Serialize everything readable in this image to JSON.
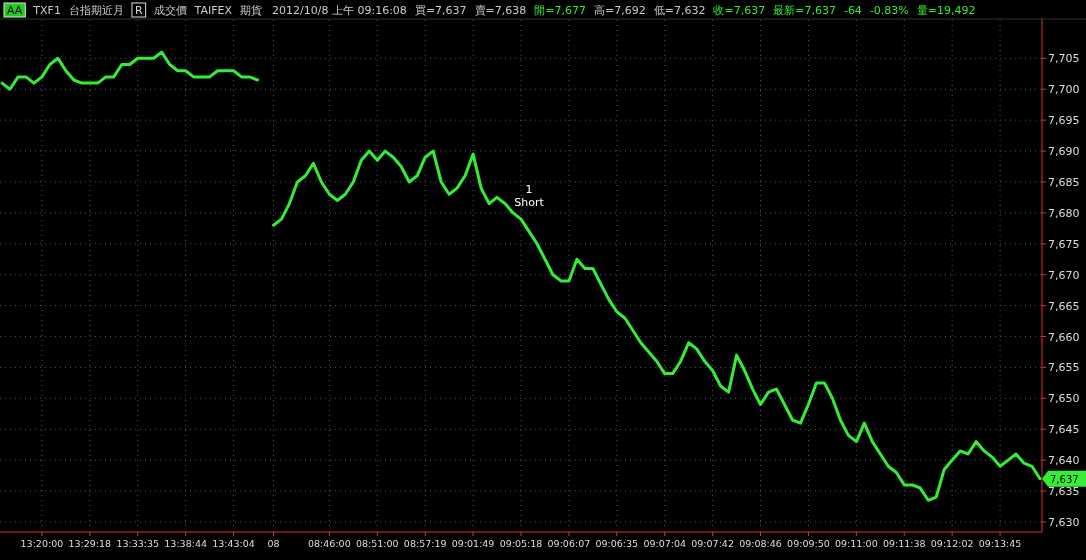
{
  "chart_data": {
    "type": "line",
    "annotations": [
      "AA",
      "TXF1",
      "台指期近月",
      "R",
      "成交價",
      "TAIFEX",
      "期貨",
      "2012/10/8 上午 09:16:08",
      "買=7,637",
      "賣=7,638",
      "開=7,677",
      "高=7,692",
      "低=7,632",
      "收=7,637",
      "最新=7,637",
      "-64",
      "-0.83%",
      "量=19,492",
      {
        "text": "1 Short",
        "x": "09:05:18",
        "y": 7679
      },
      {
        "text": "7,637",
        "y": 7637
      }
    ],
    "categories": [
      null,
      null,
      null,
      null,
      null,
      "13:20:00",
      null,
      null,
      null,
      null,
      null,
      "13:29:18",
      null,
      null,
      null,
      null,
      null,
      "13:33:35",
      null,
      null,
      null,
      null,
      null,
      "13:38:44",
      null,
      null,
      null,
      null,
      null,
      "13:43:04",
      null,
      null,
      null,
      null,
      "08",
      null,
      null,
      null,
      null,
      null,
      null,
      "08:46:00",
      null,
      null,
      null,
      null,
      null,
      "08:51:00",
      null,
      null,
      null,
      null,
      null,
      "08:57:19",
      null,
      null,
      null,
      null,
      null,
      "09:01:49",
      null,
      null,
      null,
      null,
      null,
      "09:05:18",
      null,
      null,
      null,
      null,
      null,
      "09:06:07",
      null,
      null,
      null,
      null,
      null,
      "09:06:35",
      null,
      null,
      null,
      null,
      null,
      "09:07:04",
      null,
      null,
      null,
      null,
      null,
      "09:07:42",
      null,
      null,
      null,
      null,
      null,
      "09:08:46",
      null,
      null,
      null,
      null,
      null,
      "09:09:50",
      null,
      null,
      null,
      null,
      null,
      "09:11:00",
      null,
      null,
      null,
      null,
      null,
      "09:11:38",
      null,
      null,
      null,
      null,
      null,
      "09:12:02",
      null,
      null,
      null,
      null,
      null,
      "09:13:45",
      null,
      null,
      null,
      null,
      null
    ],
    "series": [
      {
        "color": "#33ee33",
        "values": [
          7701,
          7700,
          7702,
          7702,
          7701,
          7702,
          7704,
          7705,
          7703,
          7701.5,
          7701,
          7701,
          7701,
          7702,
          7702,
          7704,
          7704,
          7705,
          7705,
          7705,
          7706,
          7704,
          7703,
          7703,
          7702,
          7702,
          7702,
          7703,
          7703,
          7703,
          7702,
          7702,
          7701.5,
          null,
          7678,
          7679,
          7681.5,
          7685,
          7686,
          7688,
          7685,
          7683,
          7682,
          7683,
          7685,
          7688.5,
          7690,
          7688.5,
          7690,
          7689,
          7687.5,
          7685,
          7686,
          7689,
          7690,
          7685,
          7683,
          7684,
          7686,
          7689.5,
          7684,
          7681.5,
          7682.5,
          7681.5,
          7680,
          7679,
          7677,
          7675,
          7672.5,
          7670,
          7669,
          7669,
          7672.5,
          7671,
          7671,
          7668.5,
          7666,
          7664,
          7663,
          7661,
          7659,
          7657.5,
          7656,
          7654,
          7654,
          7656,
          7659,
          7658,
          7656,
          7654.5,
          7652,
          7651,
          7657,
          7654.5,
          7651.5,
          7649,
          7651,
          7651.5,
          7649,
          7646.5,
          7646,
          7649,
          7652.5,
          7652.5,
          7650,
          7646.5,
          7644,
          7643,
          7646,
          7643,
          7641,
          7639,
          7638,
          7636,
          7636,
          7635.5,
          7633.5,
          7634,
          7638.5,
          7640,
          7641.5,
          7641,
          7643,
          7641.5,
          7640.5,
          7639,
          7640,
          7641,
          7639.5,
          7639,
          7637
        ]
      }
    ],
    "ylim": [
      7628.7,
      7711.2
    ],
    "yticks": [
      {
        "value": 7630,
        "label": "7,630"
      },
      {
        "value": 7635,
        "label": "7,635"
      },
      {
        "value": 7640,
        "label": "7,640"
      },
      {
        "value": 7645,
        "label": "7,645"
      },
      {
        "value": 7650,
        "label": "7,650"
      },
      {
        "value": 7655,
        "label": "7,655"
      },
      {
        "value": 7660,
        "label": "7,660"
      },
      {
        "value": 7665,
        "label": "7,665"
      },
      {
        "value": 7670,
        "label": "7,670"
      },
      {
        "value": 7675,
        "label": "7,675"
      },
      {
        "value": 7680,
        "label": "7,680"
      },
      {
        "value": 7685,
        "label": "7,685"
      },
      {
        "value": 7690,
        "label": "7,690"
      },
      {
        "value": 7695,
        "label": "7,695"
      },
      {
        "value": 7700,
        "label": "7,700"
      },
      {
        "value": 7705,
        "label": "7,705"
      }
    ],
    "grid": true,
    "line_style": "solid"
  }
}
